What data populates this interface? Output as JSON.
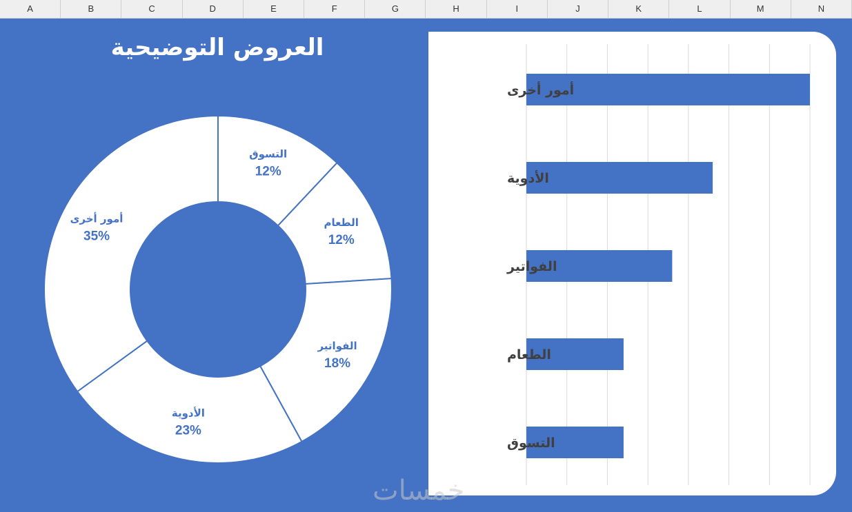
{
  "spreadsheet": {
    "columns": [
      "A",
      "B",
      "C",
      "D",
      "E",
      "F",
      "G",
      "H",
      "I",
      "J",
      "K",
      "L",
      "M",
      "N"
    ]
  },
  "colors": {
    "accent": "#4472c4",
    "panel": "#ffffff",
    "label": "#4472c4",
    "bar_label": "#404040",
    "header": "#efefef"
  },
  "chart_data": [
    {
      "type": "pie",
      "donut": true,
      "title": "العروض التوضيحية",
      "slices": [
        {
          "label": "التسوق",
          "value": 12,
          "display": "12%"
        },
        {
          "label": "الطعام",
          "value": 12,
          "display": "12%"
        },
        {
          "label": "الفواتير",
          "value": 18,
          "display": "18%"
        },
        {
          "label": "الأدوية",
          "value": 23,
          "display": "23%"
        },
        {
          "label": "أمور أخرى",
          "value": 35,
          "display": "35%"
        }
      ]
    },
    {
      "type": "bar",
      "orientation": "horizontal",
      "categories": [
        "أمور أخرى",
        "الأدوية",
        "الفواتير",
        "الطعام",
        "التسوق"
      ],
      "values": [
        35,
        23,
        18,
        12,
        12
      ],
      "xlim": [
        0,
        35
      ],
      "grid": true
    }
  ],
  "watermark": "خمسات"
}
